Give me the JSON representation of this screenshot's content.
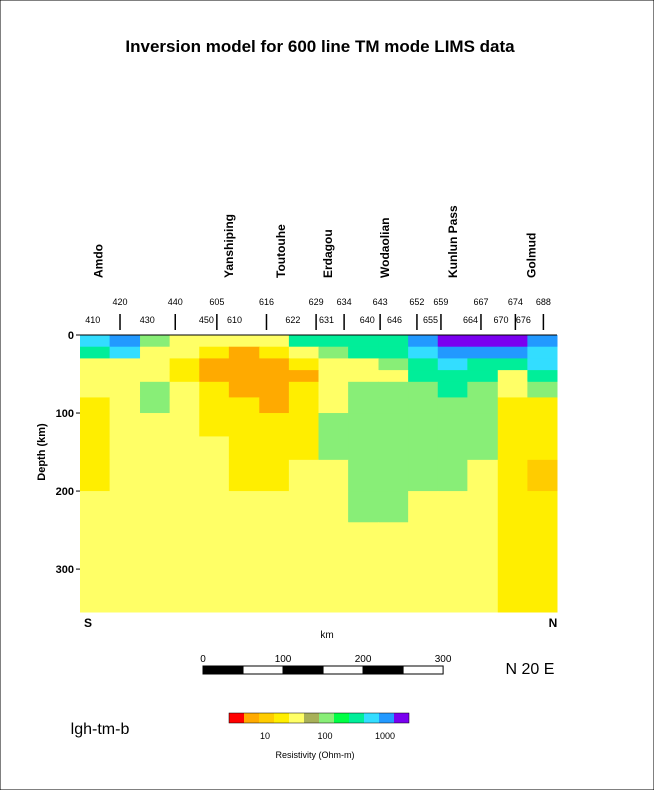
{
  "chart_data": {
    "type": "heatmap",
    "title": "Inversion model for 600 line TM mode LIMS data",
    "y_label": "Depth (km)",
    "x_label": "km",
    "left_end": "S",
    "right_end": "N",
    "orientation": "N 20 E",
    "model_name": "lgh-tm-b",
    "xlim": [
      0,
      596
    ],
    "ylim": [
      0,
      355
    ],
    "yticks": [
      0,
      100,
      200,
      300
    ],
    "x_edges": [
      0,
      37,
      75,
      112,
      149,
      186,
      224,
      261,
      298,
      335,
      373,
      410,
      447,
      484,
      522,
      559,
      596
    ],
    "y_edges": [
      0,
      15,
      30,
      45,
      60,
      80,
      100,
      130,
      160,
      200,
      240,
      300,
      355
    ],
    "values": [
      [
        750,
        1300,
        130,
        42,
        42,
        42,
        42,
        420,
        420,
        420,
        420,
        1300,
        2400,
        2400,
        2400,
        1300
      ],
      [
        420,
        750,
        42,
        42,
        24,
        7.5,
        24,
        42,
        130,
        420,
        420,
        750,
        1300,
        1300,
        1300,
        750
      ],
      [
        42,
        42,
        42,
        24,
        7.5,
        7.5,
        7.5,
        24,
        42,
        42,
        130,
        420,
        750,
        420,
        420,
        750
      ],
      [
        42,
        42,
        42,
        24,
        7.5,
        7.5,
        7.5,
        7.5,
        42,
        42,
        42,
        420,
        420,
        420,
        42,
        420
      ],
      [
        42,
        42,
        130,
        42,
        24,
        7.5,
        7.5,
        24,
        42,
        130,
        130,
        130,
        420,
        130,
        42,
        130
      ],
      [
        24,
        42,
        130,
        42,
        24,
        24,
        7.5,
        24,
        42,
        130,
        130,
        130,
        130,
        130,
        24,
        24
      ],
      [
        24,
        42,
        42,
        42,
        24,
        24,
        24,
        24,
        130,
        130,
        130,
        130,
        130,
        130,
        24,
        24
      ],
      [
        24,
        42,
        42,
        42,
        42,
        24,
        24,
        24,
        130,
        130,
        130,
        130,
        130,
        130,
        24,
        24
      ],
      [
        24,
        42,
        42,
        42,
        42,
        24,
        24,
        42,
        42,
        130,
        130,
        130,
        130,
        42,
        24,
        13
      ],
      [
        42,
        42,
        42,
        42,
        42,
        42,
        42,
        42,
        42,
        130,
        130,
        42,
        42,
        42,
        24,
        24
      ],
      [
        42,
        42,
        42,
        42,
        42,
        42,
        42,
        42,
        42,
        42,
        42,
        42,
        42,
        42,
        24,
        24
      ],
      [
        42,
        42,
        42,
        42,
        42,
        42,
        42,
        42,
        42,
        42,
        42,
        42,
        42,
        42,
        24,
        24
      ]
    ],
    "sites": [
      {
        "name": "Amdo",
        "km": 23
      },
      {
        "name": "Yanshiping",
        "km": 186
      },
      {
        "name": "Toutouhe",
        "km": 251
      },
      {
        "name": "Erdagou",
        "km": 310
      },
      {
        "name": "Wodaolian",
        "km": 381
      },
      {
        "name": "Kunlun Pass",
        "km": 466
      },
      {
        "name": "Golmud",
        "km": 564
      }
    ],
    "stations_upper": [
      {
        "label": "420",
        "km": 50
      },
      {
        "label": "440",
        "km": 119
      },
      {
        "label": "605",
        "km": 171
      },
      {
        "label": "616",
        "km": 233
      },
      {
        "label": "629",
        "km": 295
      },
      {
        "label": "634",
        "km": 330
      },
      {
        "label": "643",
        "km": 375
      },
      {
        "label": "652",
        "km": 421
      },
      {
        "label": "659",
        "km": 451
      },
      {
        "label": "667",
        "km": 501
      },
      {
        "label": "674",
        "km": 544
      },
      {
        "label": "688",
        "km": 579
      }
    ],
    "stations_lower": [
      {
        "label": "410",
        "km": 16
      },
      {
        "label": "430",
        "km": 84
      },
      {
        "label": "450",
        "km": 158
      },
      {
        "label": "610",
        "km": 193
      },
      {
        "label": "622",
        "km": 266
      },
      {
        "label": "631",
        "km": 308
      },
      {
        "label": "640",
        "km": 359
      },
      {
        "label": "646",
        "km": 393
      },
      {
        "label": "655",
        "km": 438
      },
      {
        "label": "664",
        "km": 488
      },
      {
        "label": "670",
        "km": 526
      },
      {
        "label": "676",
        "km": 554
      }
    ],
    "scale_bar": {
      "ticks": [
        0,
        100,
        200,
        300
      ],
      "lim": [
        0,
        300
      ],
      "segment": 50
    },
    "colorbar": {
      "title": "Resistivity (Ohm-m)",
      "log": true,
      "lim": [
        3.16,
        3162
      ],
      "ticks": [
        10,
        100,
        1000
      ],
      "colors": [
        "#ff0000",
        "#ffaa00",
        "#ffcc00",
        "#ffee00",
        "#ffff66",
        "#a8b058",
        "#88ee77",
        "#00ff44",
        "#00ee99",
        "#33ddff",
        "#2299ff",
        "#7a00f0"
      ]
    }
  }
}
